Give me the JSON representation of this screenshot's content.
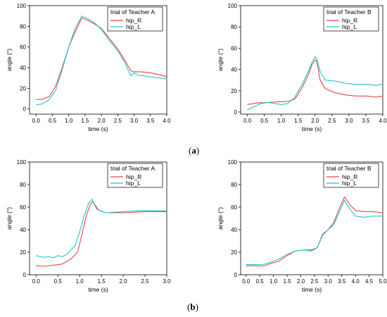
{
  "panel_labels": {
    "a": {
      "open": "(",
      "letter": "a",
      "close": ")"
    },
    "b": {
      "open": "(",
      "letter": "b",
      "close": ")"
    }
  },
  "colors": {
    "hip_R": "#e8464b",
    "hip_L": "#1fc7cf"
  },
  "chart_data": [
    {
      "type": "line",
      "legend_title": "trial of Teacher A",
      "legend": "top-right",
      "xlabel": "time (s)",
      "ylabel": "angle (°)",
      "xlim": [
        -0.2,
        4.0
      ],
      "ylim": [
        -5,
        100
      ],
      "xticks": [
        0.0,
        0.5,
        1.0,
        1.5,
        2.0,
        2.5,
        3.0,
        3.5,
        4.0
      ],
      "xtick_labels": [
        "0.0",
        "0.5",
        "1.0",
        "1.5",
        "2.0",
        "2.5",
        "3.0",
        "3.5",
        "4.0"
      ],
      "yticks": [
        0,
        20,
        40,
        60,
        80,
        100
      ],
      "ytick_labels": [
        "0",
        "20",
        "40",
        "60",
        "80",
        "100"
      ],
      "series": [
        {
          "name": "hip_R",
          "color": "#e8464b",
          "x": [
            0.0,
            0.2,
            0.4,
            0.6,
            0.8,
            1.0,
            1.2,
            1.4,
            1.5,
            1.8,
            2.0,
            2.2,
            2.5,
            2.7,
            2.9,
            3.0,
            3.2,
            3.5,
            3.8,
            4.0
          ],
          "y": [
            9,
            9.5,
            12,
            22,
            40,
            60,
            75,
            88,
            87,
            82,
            78,
            70,
            58,
            48,
            37,
            36,
            36,
            35,
            33,
            31
          ]
        },
        {
          "name": "hip_L",
          "color": "#1fc7cf",
          "x": [
            0.0,
            0.2,
            0.4,
            0.6,
            0.8,
            1.0,
            1.2,
            1.4,
            1.6,
            1.8,
            2.0,
            2.2,
            2.5,
            2.7,
            2.9,
            3.0,
            3.1,
            3.3,
            3.5,
            3.8,
            4.0
          ],
          "y": [
            4,
            5,
            9,
            18,
            38,
            60,
            78,
            90,
            87,
            83,
            77,
            68,
            56,
            46,
            32,
            35,
            33,
            32,
            31,
            30,
            29
          ]
        }
      ]
    },
    {
      "type": "line",
      "legend_title": "trial of Teacher B",
      "legend": "top-right",
      "xlabel": "time (s)",
      "ylabel": "angle (°)",
      "xlim": [
        -0.2,
        4.0
      ],
      "ylim": [
        -2,
        100
      ],
      "xticks": [
        0.0,
        0.5,
        1.0,
        1.5,
        2.0,
        2.5,
        3.0,
        3.5,
        4.0
      ],
      "xtick_labels": [
        "0.0",
        "0.5",
        "1.0",
        "1.5",
        "2.0",
        "2.5",
        "3.0",
        "3.5",
        "4.0"
      ],
      "yticks": [
        0,
        20,
        40,
        60,
        80,
        100
      ],
      "ytick_labels": [
        "0",
        "20",
        "40",
        "60",
        "80",
        "100"
      ],
      "series": [
        {
          "name": "hip_R",
          "color": "#e8464b",
          "x": [
            0.0,
            0.3,
            0.6,
            0.9,
            1.2,
            1.4,
            1.6,
            1.8,
            1.9,
            2.0,
            2.05,
            2.15,
            2.3,
            2.6,
            2.9,
            3.2,
            3.5,
            3.8,
            4.0
          ],
          "y": [
            7,
            8.5,
            9,
            9.5,
            10,
            12,
            22,
            35,
            44,
            49,
            48,
            30,
            22,
            18,
            16,
            15,
            15,
            14,
            15
          ]
        },
        {
          "name": "hip_L",
          "color": "#1fc7cf",
          "x": [
            0.0,
            0.2,
            0.4,
            0.6,
            0.8,
            1.0,
            1.2,
            1.4,
            1.6,
            1.8,
            1.9,
            2.0,
            2.05,
            2.15,
            2.3,
            2.6,
            2.9,
            3.2,
            3.5,
            3.8,
            4.0
          ],
          "y": [
            2,
            5,
            8,
            9,
            8,
            7,
            8,
            14,
            25,
            38,
            46,
            52,
            50,
            38,
            30,
            29,
            27,
            26,
            26,
            25,
            26
          ]
        }
      ]
    },
    {
      "type": "line",
      "legend_title": "trial of Teacher A",
      "legend": "top-right",
      "xlabel": "time (s)",
      "ylabel": "angle (°)",
      "xlim": [
        -0.15,
        3.0
      ],
      "ylim": [
        0,
        100
      ],
      "xticks": [
        0.0,
        0.5,
        1.0,
        1.5,
        2.0,
        2.5,
        3.0
      ],
      "xtick_labels": [
        "0.0",
        "0.5",
        "1.0",
        "1.5",
        "2.0",
        "2.5",
        "3.0"
      ],
      "yticks": [
        0,
        20,
        40,
        60,
        80,
        100
      ],
      "ytick_labels": [
        "0",
        "20",
        "40",
        "60",
        "80",
        "100"
      ],
      "series": [
        {
          "name": "hip_R",
          "color": "#e8464b",
          "x": [
            0.0,
            0.2,
            0.4,
            0.6,
            0.8,
            0.95,
            1.05,
            1.15,
            1.25,
            1.3,
            1.4,
            1.6,
            2.0,
            2.5,
            3.0
          ],
          "y": [
            8,
            7.5,
            8.5,
            9.5,
            14,
            20,
            35,
            52,
            63,
            65,
            58,
            55,
            55,
            56,
            56
          ]
        },
        {
          "name": "hip_L",
          "color": "#1fc7cf",
          "x": [
            0.0,
            0.1,
            0.2,
            0.3,
            0.4,
            0.5,
            0.6,
            0.7,
            0.8,
            0.9,
            1.0,
            1.1,
            1.2,
            1.28,
            1.35,
            1.45,
            1.6,
            2.0,
            2.5,
            3.0
          ],
          "y": [
            17,
            16,
            15.5,
            16,
            15,
            17,
            16,
            18,
            22,
            26,
            38,
            52,
            63,
            67,
            62,
            57,
            55,
            56,
            57,
            56.5
          ]
        }
      ]
    },
    {
      "type": "line",
      "legend_title": "trial of Teacher B",
      "legend": "top-right",
      "xlabel": "time (s)",
      "ylabel": "angle (°)",
      "xlim": [
        -0.2,
        5.0
      ],
      "ylim": [
        0,
        100
      ],
      "xticks": [
        0.0,
        0.5,
        1.0,
        1.5,
        2.0,
        2.5,
        3.0,
        3.5,
        4.0,
        4.5,
        5.0
      ],
      "xtick_labels": [
        "0.0",
        "0.5",
        "1.0",
        "1.5",
        "2.0",
        "2.5",
        "3.0",
        "3.5",
        "4.0",
        "4.5",
        "5.0"
      ],
      "yticks": [
        0,
        20,
        40,
        60,
        80,
        100
      ],
      "ytick_labels": [
        "0",
        "20",
        "40",
        "60",
        "80",
        "100"
      ],
      "series": [
        {
          "name": "hip_R",
          "color": "#e8464b",
          "x": [
            0.0,
            0.3,
            0.6,
            0.9,
            1.2,
            1.5,
            1.8,
            2.1,
            2.4,
            2.6,
            2.8,
            3.0,
            3.2,
            3.4,
            3.6,
            3.8,
            4.0,
            4.3,
            4.6,
            5.0
          ],
          "y": [
            8,
            8,
            7.5,
            10,
            12,
            17,
            21,
            22,
            22,
            24,
            36,
            40,
            46,
            58,
            69,
            62,
            57,
            56,
            56,
            55
          ]
        },
        {
          "name": "hip_L",
          "color": "#1fc7cf",
          "x": [
            0.0,
            0.3,
            0.6,
            0.9,
            1.2,
            1.5,
            1.8,
            2.1,
            2.4,
            2.6,
            2.8,
            3.0,
            3.2,
            3.4,
            3.6,
            3.8,
            4.0,
            4.3,
            4.6,
            5.0
          ],
          "y": [
            9,
            9,
            9,
            11,
            14,
            18,
            21,
            22,
            21,
            24,
            35,
            40,
            44,
            55,
            66,
            58,
            52,
            51,
            52,
            52
          ]
        }
      ]
    }
  ]
}
